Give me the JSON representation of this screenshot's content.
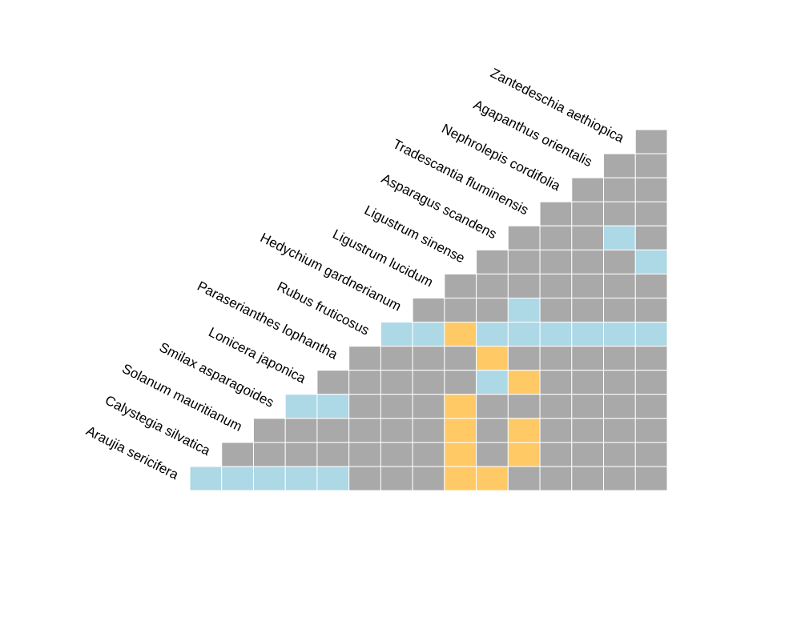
{
  "chart_data": {
    "type": "heatmap",
    "layout": "lower-triangle",
    "species": [
      "Araujia sericifera",
      "Calystegia silvatica",
      "Solanum mauritianum",
      "Smilax asparagoides",
      "Lonicera japonica",
      "Paraserianthes lophantha",
      "Rubus fruticosus",
      "Hedychium gardnerianum",
      "Ligustrum lucidum",
      "Ligustrum sinense",
      "Asparagus scandens",
      "Tradescantia fluminensis",
      "Nephrolepis cordifolia",
      "Agapanthus orientalis",
      "Zantedeschia aethiopica"
    ],
    "categories": [
      "grey",
      "orange",
      "blue"
    ],
    "colors": {
      "grey": "#A9A9A9",
      "orange": "#FFC966",
      "blue": "#ADD8E6"
    },
    "rows": [
      [
        "grey"
      ],
      [
        "grey",
        "grey"
      ],
      [
        "grey",
        "grey",
        "grey"
      ],
      [
        "grey",
        "grey",
        "grey",
        "grey"
      ],
      [
        "grey",
        "grey",
        "grey",
        "grey",
        "grey"
      ],
      [
        "grey",
        "grey",
        "grey",
        "grey",
        "grey",
        "blue"
      ],
      [
        "grey",
        "grey",
        "grey",
        "grey",
        "grey",
        "grey",
        "grey"
      ],
      [
        "grey",
        "grey",
        "grey",
        "grey",
        "grey",
        "grey",
        "grey",
        "grey"
      ],
      [
        "blue",
        "blue",
        "blue",
        "blue",
        "blue",
        "blue",
        "blue",
        "blue",
        "blue"
      ],
      [
        "grey",
        "grey",
        "grey",
        "grey",
        "grey",
        "grey",
        "grey",
        "grey",
        "grey",
        "grey"
      ],
      [
        "grey",
        "grey",
        "grey",
        "grey",
        "grey",
        "grey",
        "grey",
        "grey",
        "grey",
        "grey",
        "grey"
      ],
      [
        "blue",
        "blue",
        "grey",
        "grey",
        "grey",
        "grey",
        "grey",
        "grey",
        "grey",
        "grey",
        "grey",
        "grey"
      ],
      [
        "grey",
        "grey",
        "grey",
        "grey",
        "grey",
        "grey",
        "grey",
        "grey",
        "grey",
        "grey",
        "grey",
        "grey",
        "grey"
      ],
      [
        "grey",
        "grey",
        "grey",
        "grey",
        "grey",
        "grey",
        "grey",
        "grey",
        "grey",
        "grey",
        "grey",
        "grey",
        "grey",
        "grey"
      ],
      [
        "blue",
        "blue",
        "blue",
        "blue",
        "blue",
        "grey",
        "grey",
        "grey",
        "grey",
        "grey",
        "grey",
        "grey",
        "grey",
        "grey",
        "grey"
      ]
    ],
    "overrides": [
      {
        "row": 14,
        "col": 9,
        "value": "orange"
      },
      {
        "row": 14,
        "col": 8,
        "value": "orange"
      },
      {
        "row": 13,
        "col": 8,
        "value": "orange"
      },
      {
        "row": 13,
        "col": 10,
        "value": "orange"
      },
      {
        "row": 12,
        "col": 8,
        "value": "orange"
      },
      {
        "row": 12,
        "col": 10,
        "value": "orange"
      },
      {
        "row": 11,
        "col": 8,
        "value": "orange"
      },
      {
        "row": 10,
        "col": 10,
        "value": "orange"
      },
      {
        "row": 10,
        "col": 9,
        "value": "blue"
      },
      {
        "row": 9,
        "col": 9,
        "value": "orange"
      },
      {
        "row": 8,
        "col": 8,
        "value": "orange"
      },
      {
        "row": 7,
        "col": 10,
        "value": "blue"
      },
      {
        "row": 4,
        "col": 13,
        "value": "blue"
      },
      {
        "row": 4,
        "col": 14,
        "value": "grey"
      }
    ],
    "title": "",
    "xlabel": "",
    "ylabel": "",
    "legend": "none",
    "grid": false
  }
}
